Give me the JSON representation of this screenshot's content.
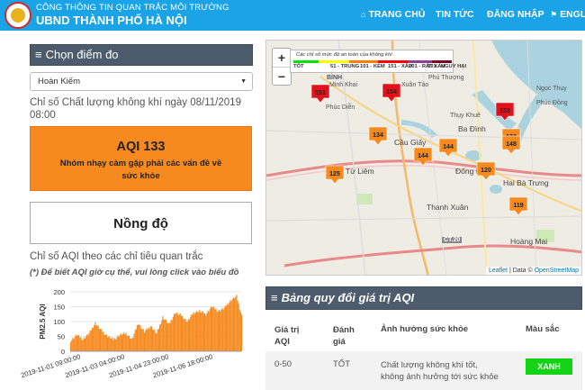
{
  "header": {
    "org_line": "CÔNG THÔNG TIN QUAN TRẮC MÔI TRƯỜNG",
    "org_name": "UBND THÀNH PHỐ HÀ NỘI",
    "nav": [
      {
        "icon": "home-icon",
        "label": "TRANG CHỦ"
      },
      {
        "label": "TIN TỨC"
      },
      {
        "label": "ĐĂNG NHẬP"
      },
      {
        "icon": "flag-icon",
        "label": "ENGL"
      }
    ],
    "colors": {
      "topbar": "#1aa3e6"
    }
  },
  "left": {
    "panel_title": "Chọn điểm đo",
    "station_select": {
      "value": "Hoàn Kiếm"
    },
    "date_text": "Chỉ số Chất lượng không khí ngày 08/11/2019 08:00",
    "aqi": {
      "value": 133,
      "label": "AQI 133",
      "message": "Nhóm nhạy cảm gặp phải các vấn đề về sức khỏe",
      "color": "#f68a1f"
    },
    "concentration_title": "Nồng độ",
    "aqi_by_indicator_title": "Chỉ số AQI theo các chỉ tiêu quan trắc",
    "hint": "(*) Để biết AQI giờ cụ thể, vui lòng click vào biểu đồ"
  },
  "chart_data": {
    "type": "bar",
    "ylabel": "PM2.5 AQI",
    "ylim": [
      0,
      200
    ],
    "yticks": [
      0,
      50,
      100,
      150,
      200
    ],
    "xtick_labels": [
      "2019-11-01 09:00:00",
      "2019-11-03 04:00:00",
      "2019-11-04 23:00:00",
      "2019-11-06 18:00:00"
    ],
    "xtick_positions_hours": [
      0,
      43,
      86,
      129
    ],
    "x_hours_total": 167,
    "color": "#f68a1f",
    "envelope_hours": [
      0,
      6,
      12,
      18,
      24,
      30,
      36,
      42,
      48,
      54,
      60,
      66,
      72,
      78,
      84,
      90,
      96,
      102,
      108,
      114,
      120,
      126,
      132,
      138,
      144,
      150,
      156,
      162,
      167
    ],
    "envelope_values": [
      35,
      55,
      40,
      60,
      95,
      70,
      50,
      40,
      55,
      60,
      40,
      95,
      65,
      85,
      60,
      115,
      90,
      130,
      120,
      100,
      130,
      135,
      125,
      150,
      135,
      145,
      170,
      185,
      120
    ]
  },
  "map": {
    "legend_title": "Các chỉ số mức độ an toàn của không khí",
    "legend": [
      {
        "label": "TỐT",
        "color": "#00e400"
      },
      {
        "label": "51 - TRUNG",
        "color": "#ffff00"
      },
      {
        "label": "101 - KÉM",
        "color": "#ff7e00"
      },
      {
        "label": "151 - XẤU",
        "color": "#ff0000"
      },
      {
        "label": "201 - RẤT XẤU",
        "color": "#8f3f97"
      },
      {
        "label": "301 - NGUY HẠI",
        "color": "#7e0023"
      }
    ],
    "markers": [
      {
        "value": "151",
        "color": "#e3121a"
      },
      {
        "value": "154",
        "color": "#e3121a"
      },
      {
        "value": "153",
        "color": "#e3121a"
      },
      {
        "value": "134",
        "color": "#f68a1f"
      },
      {
        "value": "144",
        "color": "#f68a1f"
      },
      {
        "value": "144",
        "color": "#f68a1f"
      },
      {
        "value": "133",
        "color": "#f68a1f"
      },
      {
        "value": "148",
        "color": "#f68a1f"
      },
      {
        "value": "125",
        "color": "#f68a1f"
      },
      {
        "value": "120",
        "color": "#f68a1f"
      },
      {
        "value": "119",
        "color": "#f68a1f"
      }
    ],
    "place_labels": [
      "Minh Khai",
      "BÌNH",
      "Phúc Diễn",
      "Xuân Tảo",
      "Phú Thượng",
      "Ngọc Thụy",
      "Phúc Đồng",
      "Cầu Giấy",
      "Ba Đình",
      "Thụy Khuê",
      "Từ Liêm",
      "Đống Đa",
      "Hai Bà Trưng",
      "Thanh Xuân",
      "Hoàng Mai",
      "CT.20"
    ],
    "attribution": {
      "leaflet": "Leaflet",
      "data": "Data ©",
      "osm": "OpenStreetMap"
    }
  },
  "conversion_table": {
    "title": "Bảng quy đổi giá trị AQI",
    "headers": [
      "Giá trị AQI",
      "Đánh giá",
      "Ảnh hưởng sức khỏe",
      "Màu sắc"
    ],
    "rows": [
      {
        "range": "0-50",
        "rating": "TỐT",
        "effect": "Chất lượng không khí tốt, không ảnh hưởng tới sức khỏe",
        "color_label": "XANH",
        "color": "#14d314"
      }
    ]
  }
}
